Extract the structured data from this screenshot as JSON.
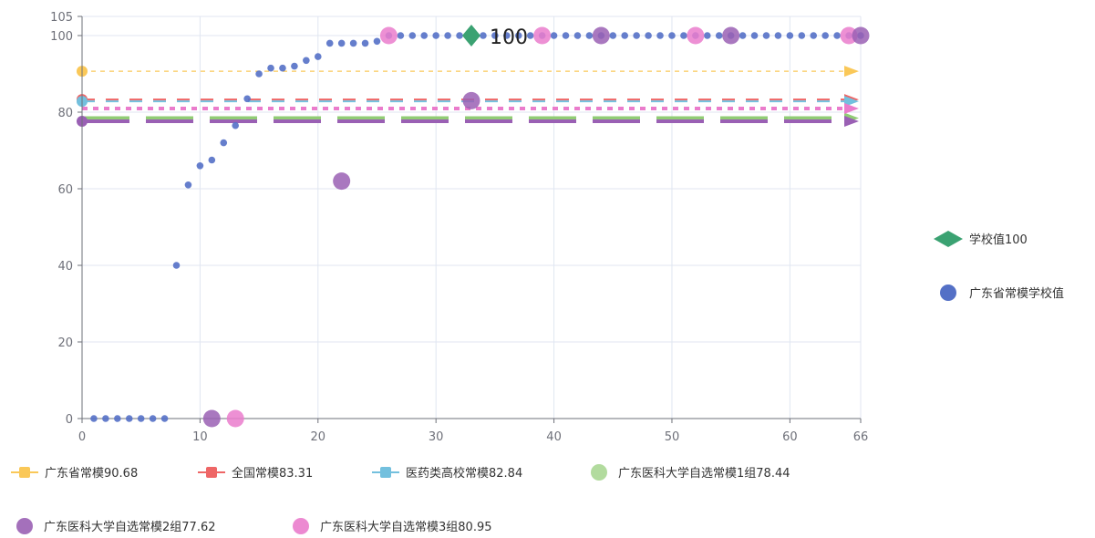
{
  "chart_data": {
    "type": "scatter",
    "xlim": [
      0,
      66
    ],
    "ylim": [
      0,
      105
    ],
    "x_ticks": [
      0,
      10,
      20,
      30,
      40,
      50,
      60,
      66
    ],
    "y_ticks": [
      0,
      20,
      40,
      60,
      80,
      100,
      105
    ],
    "grid": true,
    "reference_lines": [
      {
        "name": "广东省常模90.68",
        "value": 90.68,
        "color": "#fac858",
        "style": "dashed-thin",
        "end_marker": "arrow"
      },
      {
        "name": "全国常模83.31",
        "value": 83.31,
        "color": "#ee6666",
        "style": "dashed",
        "end_marker": "arrow"
      },
      {
        "name": "医药类高校常模82.84",
        "value": 82.84,
        "color": "#73c0de",
        "style": "dashed",
        "end_marker": "arrow"
      },
      {
        "name": "广东医科大学自选常模1组78.44",
        "value": 78.44,
        "color": "#91cc75",
        "style": "dashed-thick",
        "end_marker": "arrow"
      },
      {
        "name": "广东医科大学自选常模2组77.62",
        "value": 77.62,
        "color": "#9a60b4",
        "style": "dashed-thick",
        "end_marker": "arrow"
      },
      {
        "name": "广东医科大学自选常模3组80.95",
        "value": 80.95,
        "color": "#ea7ccc",
        "style": "dotted-thick",
        "end_marker": "arrow"
      }
    ],
    "series": [
      {
        "name": "广东省常模学校值",
        "color": "#5470c6",
        "points": [
          [
            1,
            0
          ],
          [
            2,
            0
          ],
          [
            3,
            0
          ],
          [
            4,
            0
          ],
          [
            5,
            0
          ],
          [
            6,
            0
          ],
          [
            7,
            0
          ],
          [
            8,
            40
          ],
          [
            9,
            61
          ],
          [
            10,
            66
          ],
          [
            11,
            67.5
          ],
          [
            12,
            72
          ],
          [
            13,
            76.5
          ],
          [
            14,
            83.5
          ],
          [
            15,
            90
          ],
          [
            16,
            91.5
          ],
          [
            17,
            91.5
          ],
          [
            18,
            92
          ],
          [
            19,
            93.5
          ],
          [
            20,
            94.5
          ],
          [
            21,
            98
          ],
          [
            22,
            98
          ],
          [
            23,
            98
          ],
          [
            24,
            98
          ],
          [
            25,
            98.5
          ],
          [
            26,
            100
          ],
          [
            27,
            100
          ],
          [
            28,
            100
          ],
          [
            29,
            100
          ],
          [
            30,
            100
          ],
          [
            31,
            100
          ],
          [
            32,
            100
          ],
          [
            33,
            100
          ],
          [
            34,
            100
          ],
          [
            35,
            100
          ],
          [
            36,
            100
          ],
          [
            37,
            100
          ],
          [
            38,
            100
          ],
          [
            39,
            100
          ],
          [
            40,
            100
          ],
          [
            41,
            100
          ],
          [
            42,
            100
          ],
          [
            43,
            100
          ],
          [
            44,
            100
          ],
          [
            45,
            100
          ],
          [
            46,
            100
          ],
          [
            47,
            100
          ],
          [
            48,
            100
          ],
          [
            49,
            100
          ],
          [
            50,
            100
          ],
          [
            51,
            100
          ],
          [
            52,
            100
          ],
          [
            53,
            100
          ],
          [
            54,
            100
          ],
          [
            55,
            100
          ],
          [
            56,
            100
          ],
          [
            57,
            100
          ],
          [
            58,
            100
          ],
          [
            59,
            100
          ],
          [
            60,
            100
          ],
          [
            61,
            100
          ],
          [
            62,
            100
          ],
          [
            63,
            100
          ],
          [
            64,
            100
          ],
          [
            65,
            100
          ],
          [
            66,
            100
          ]
        ]
      },
      {
        "name": "学校值100",
        "color": "#3ba272",
        "marker": "diamond",
        "points": [
          [
            33,
            100
          ]
        ],
        "label": "100"
      }
    ],
    "highlight_points": [
      {
        "x": 11,
        "y": 0,
        "color": "#9a60b4"
      },
      {
        "x": 13,
        "y": 0,
        "color": "#ea7ccc"
      },
      {
        "x": 22,
        "y": 62,
        "color": "#9a60b4"
      },
      {
        "x": 33,
        "y": 83,
        "color": "#9a60b4"
      },
      {
        "x": 26,
        "y": 100,
        "color": "#ea7ccc"
      },
      {
        "x": 39,
        "y": 100,
        "color": "#ea7ccc"
      },
      {
        "x": 44,
        "y": 100,
        "color": "#9a60b4"
      },
      {
        "x": 52,
        "y": 100,
        "color": "#ea7ccc"
      },
      {
        "x": 55,
        "y": 100,
        "color": "#9a60b4"
      },
      {
        "x": 65,
        "y": 100,
        "color": "#ea7ccc"
      },
      {
        "x": 66,
        "y": 100,
        "color": "#9a60b4"
      }
    ],
    "left_markers": [
      {
        "value": 90.68,
        "color": "#fac858",
        "shape": "circle"
      },
      {
        "value": 83.31,
        "color": "#ee6666",
        "shape": "circle"
      },
      {
        "value": 82.84,
        "color": "#73c0de",
        "shape": "circle"
      },
      {
        "value": 77.62,
        "color": "#9a60b4",
        "shape": "circle"
      }
    ],
    "right_legend": [
      {
        "label": "学校值100",
        "color": "#3ba272",
        "icon": "diamond"
      },
      {
        "label": "广东省常模学校值",
        "color": "#5470c6",
        "icon": "circle"
      }
    ],
    "bottom_legend": [
      {
        "label": "广东省常模90.68",
        "color": "#fac858",
        "icon": "line-square"
      },
      {
        "label": "全国常模83.31",
        "color": "#ee6666",
        "icon": "line-square"
      },
      {
        "label": "医药类高校常模82.84",
        "color": "#73c0de",
        "icon": "line-square"
      },
      {
        "label": "广东医科大学自选常模1组78.44",
        "color": "#91cc75",
        "icon": "circle"
      },
      {
        "label": "广东医科大学自选常模2组77.62",
        "color": "#9a60b4",
        "icon": "circle"
      },
      {
        "label": "广东医科大学自选常模3组80.95",
        "color": "#ea7ccc",
        "icon": "circle"
      }
    ],
    "legend_placement": {
      "right": "right-middle",
      "bottom": "bottom"
    }
  }
}
